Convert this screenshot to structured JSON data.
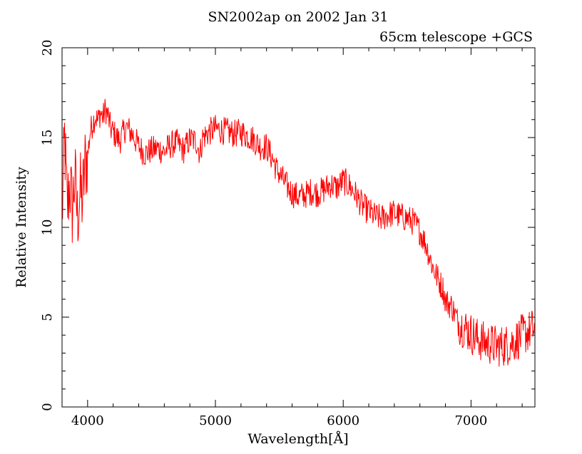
{
  "chart_data": {
    "type": "line",
    "title": "SN2002ap on 2002 Jan 31",
    "subtitle": "65cm telescope +GCS",
    "xlabel": "Wavelength[Å]",
    "ylabel": "Relative Intensity",
    "xlim": [
      3800,
      7500
    ],
    "ylim": [
      0,
      20
    ],
    "x_ticks": [
      4000,
      5000,
      6000,
      7000
    ],
    "x_tick_labels": [
      "4000",
      "5000",
      "6000",
      "7000"
    ],
    "y_ticks": [
      0,
      5,
      10,
      15,
      20
    ],
    "y_tick_labels": [
      "0",
      "5",
      "10",
      "15",
      "20"
    ],
    "grid": false,
    "line_color": "#ff0000",
    "x": [
      3800,
      3820,
      3840,
      3860,
      3880,
      3900,
      3920,
      3940,
      3960,
      3980,
      4000,
      4020,
      4040,
      4060,
      4080,
      4100,
      4120,
      4140,
      4160,
      4180,
      4200,
      4250,
      4300,
      4350,
      4400,
      4450,
      4500,
      4550,
      4600,
      4650,
      4700,
      4750,
      4800,
      4850,
      4880,
      4900,
      4950,
      5000,
      5050,
      5100,
      5150,
      5200,
      5250,
      5300,
      5350,
      5400,
      5420,
      5450,
      5480,
      5500,
      5550,
      5600,
      5650,
      5700,
      5750,
      5800,
      5850,
      5900,
      5950,
      6000,
      6050,
      6100,
      6150,
      6200,
      6250,
      6300,
      6350,
      6400,
      6450,
      6500,
      6550,
      6600,
      6650,
      6700,
      6750,
      6780,
      6800,
      6850,
      6900,
      6950,
      7000,
      7050,
      7100,
      7150,
      7200,
      7250,
      7300,
      7350,
      7400,
      7450,
      7500
    ],
    "y": [
      10.5,
      15.0,
      11.0,
      12.5,
      11.0,
      12.8,
      10.5,
      12.0,
      11.5,
      13.5,
      14.0,
      15.3,
      15.8,
      16.2,
      15.9,
      16.4,
      16.1,
      16.6,
      16.2,
      15.5,
      15.3,
      14.8,
      15.6,
      15.2,
      14.5,
      14.1,
      14.3,
      14.4,
      14.2,
      14.6,
      14.7,
      14.3,
      14.9,
      14.8,
      14.1,
      15.0,
      15.3,
      15.5,
      15.4,
      15.3,
      15.2,
      15.3,
      15.1,
      14.9,
      14.5,
      14.5,
      14.2,
      13.8,
      13.2,
      13.0,
      12.4,
      11.9,
      11.7,
      11.8,
      12.0,
      11.9,
      12.1,
      12.4,
      12.2,
      12.6,
      12.3,
      11.8,
      11.2,
      10.9,
      10.6,
      10.5,
      10.7,
      10.8,
      10.6,
      10.5,
      10.3,
      9.8,
      9.0,
      7.8,
      7.0,
      6.6,
      5.9,
      5.6,
      4.7,
      4.4,
      4.1,
      3.8,
      3.6,
      3.5,
      3.4,
      3.4,
      3.5,
      3.7,
      4.0,
      4.2,
      4.4
    ]
  }
}
